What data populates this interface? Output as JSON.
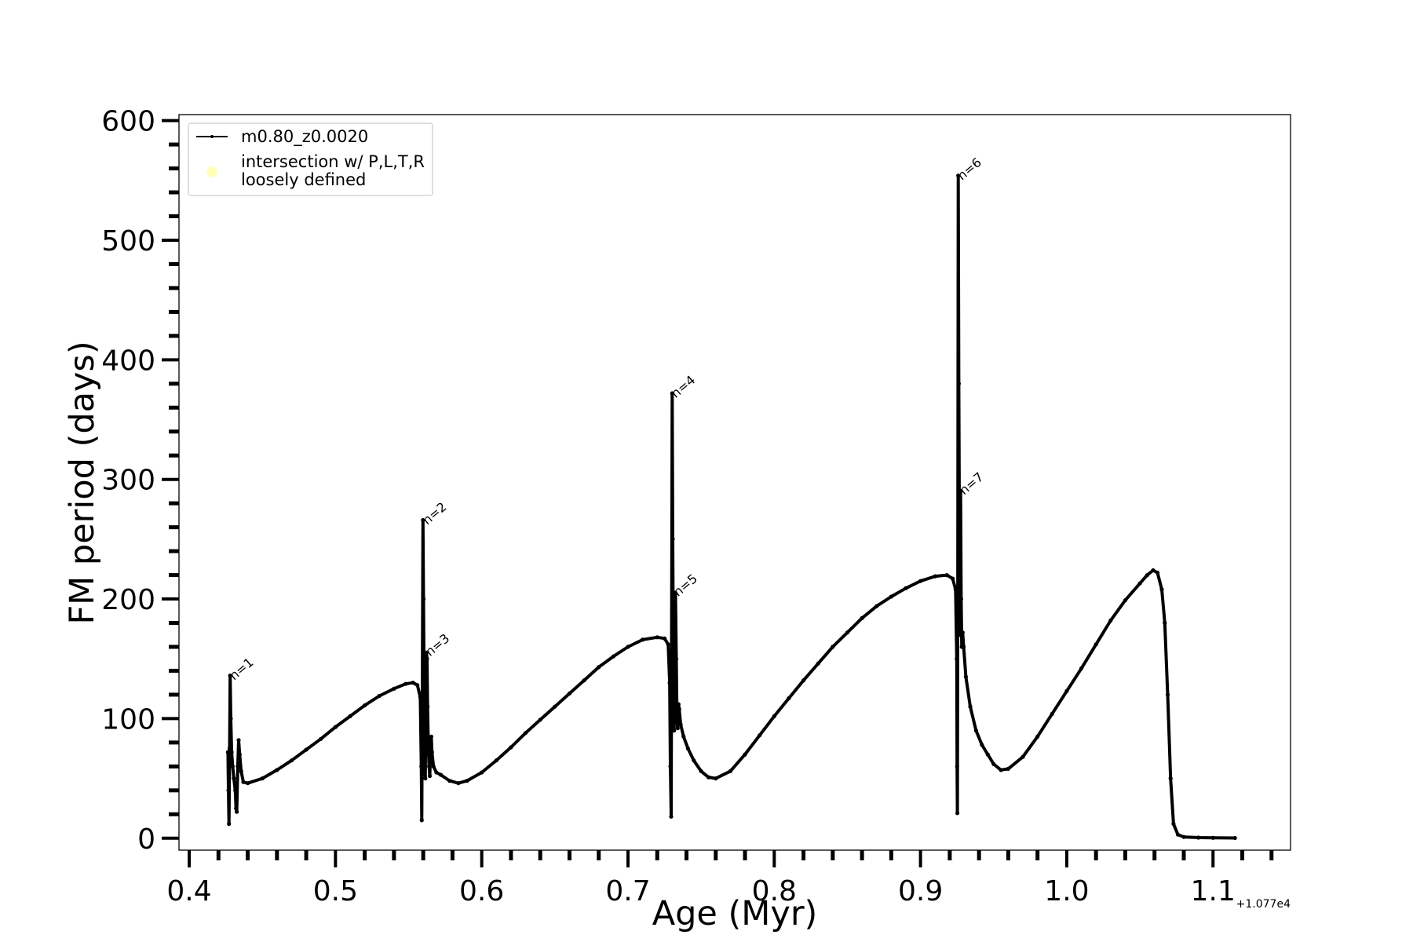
{
  "chart_data": {
    "type": "line",
    "title": "",
    "xlabel": "Age (Myr)",
    "ylabel": "FM period (days)",
    "x_offset_label": "+1.077e4",
    "xlim": [
      0.393,
      1.153
    ],
    "ylim": [
      -10,
      605
    ],
    "x_ticks": [
      0.4,
      0.5,
      0.6,
      0.7,
      0.8,
      0.9,
      1.0,
      1.1
    ],
    "x_tick_labels": [
      "0.4",
      "0.5",
      "0.6",
      "0.7",
      "0.8",
      "0.9",
      "1.0",
      "1.1"
    ],
    "y_ticks": [
      0,
      100,
      200,
      300,
      400,
      500,
      600
    ],
    "y_tick_labels": [
      "0",
      "100",
      "200",
      "300",
      "400",
      "500",
      "600"
    ],
    "grid": false,
    "legend": {
      "placement": "top-left",
      "entries": [
        {
          "label": "m0.80_z0.0020",
          "marker": "line",
          "color": "#000000"
        },
        {
          "label_line1": "intersection w/ P,L,T,R",
          "label_line2": "loosely defined",
          "marker": "circle",
          "color": "#ffffaa"
        }
      ]
    },
    "series": [
      {
        "name": "m0.80_z0.0020",
        "color": "#000000",
        "points": [
          [
            0.4265,
            72
          ],
          [
            0.4268,
            40
          ],
          [
            0.4272,
            12
          ],
          [
            0.4276,
            75
          ],
          [
            0.428,
            136
          ],
          [
            0.4284,
            100
          ],
          [
            0.429,
            72
          ],
          [
            0.4297,
            60
          ],
          [
            0.4305,
            50
          ],
          [
            0.4315,
            40
          ],
          [
            0.432,
            25
          ],
          [
            0.4325,
            22
          ],
          [
            0.4332,
            60
          ],
          [
            0.4338,
            82
          ],
          [
            0.4345,
            70
          ],
          [
            0.4355,
            56
          ],
          [
            0.437,
            47
          ],
          [
            0.44,
            46
          ],
          [
            0.45,
            50
          ],
          [
            0.46,
            57
          ],
          [
            0.47,
            65
          ],
          [
            0.48,
            74
          ],
          [
            0.49,
            83
          ],
          [
            0.5,
            93
          ],
          [
            0.51,
            102
          ],
          [
            0.52,
            111
          ],
          [
            0.53,
            119
          ],
          [
            0.54,
            125
          ],
          [
            0.548,
            129
          ],
          [
            0.553,
            130
          ],
          [
            0.556,
            128
          ],
          [
            0.558,
            118
          ],
          [
            0.5587,
            60
          ],
          [
            0.559,
            15
          ],
          [
            0.5594,
            120
          ],
          [
            0.5598,
            266
          ],
          [
            0.5602,
            200
          ],
          [
            0.5606,
            120
          ],
          [
            0.561,
            60
          ],
          [
            0.5614,
            50
          ],
          [
            0.5618,
            120
          ],
          [
            0.5622,
            155
          ],
          [
            0.5626,
            150
          ],
          [
            0.563,
            110
          ],
          [
            0.5635,
            75
          ],
          [
            0.564,
            60
          ],
          [
            0.5645,
            52
          ],
          [
            0.565,
            75
          ],
          [
            0.5655,
            85
          ],
          [
            0.566,
            72
          ],
          [
            0.567,
            60
          ],
          [
            0.569,
            55
          ],
          [
            0.572,
            53
          ],
          [
            0.578,
            48
          ],
          [
            0.584,
            46
          ],
          [
            0.59,
            48
          ],
          [
            0.6,
            55
          ],
          [
            0.61,
            65
          ],
          [
            0.62,
            76
          ],
          [
            0.63,
            88
          ],
          [
            0.64,
            99
          ],
          [
            0.65,
            110
          ],
          [
            0.66,
            121
          ],
          [
            0.67,
            132
          ],
          [
            0.68,
            143
          ],
          [
            0.69,
            152
          ],
          [
            0.7,
            160
          ],
          [
            0.71,
            166
          ],
          [
            0.72,
            168
          ],
          [
            0.725,
            167
          ],
          [
            0.7275,
            162
          ],
          [
            0.7285,
            130
          ],
          [
            0.729,
            60
          ],
          [
            0.7295,
            18
          ],
          [
            0.7298,
            150
          ],
          [
            0.7302,
            372
          ],
          [
            0.7306,
            250
          ],
          [
            0.731,
            160
          ],
          [
            0.7315,
            90
          ],
          [
            0.732,
            120
          ],
          [
            0.7325,
            205
          ],
          [
            0.733,
            150
          ],
          [
            0.7335,
            100
          ],
          [
            0.734,
            92
          ],
          [
            0.7345,
            112
          ],
          [
            0.735,
            108
          ],
          [
            0.736,
            95
          ],
          [
            0.738,
            85
          ],
          [
            0.741,
            75
          ],
          [
            0.745,
            65
          ],
          [
            0.75,
            56
          ],
          [
            0.755,
            51
          ],
          [
            0.76,
            50
          ],
          [
            0.77,
            56
          ],
          [
            0.78,
            70
          ],
          [
            0.79,
            86
          ],
          [
            0.8,
            102
          ],
          [
            0.81,
            117
          ],
          [
            0.82,
            132
          ],
          [
            0.83,
            146
          ],
          [
            0.84,
            160
          ],
          [
            0.85,
            172
          ],
          [
            0.86,
            184
          ],
          [
            0.87,
            194
          ],
          [
            0.88,
            202
          ],
          [
            0.89,
            209
          ],
          [
            0.9,
            215
          ],
          [
            0.91,
            219
          ],
          [
            0.918,
            220
          ],
          [
            0.922,
            217
          ],
          [
            0.924,
            208
          ],
          [
            0.9248,
            150
          ],
          [
            0.925,
            60
          ],
          [
            0.9252,
            21
          ],
          [
            0.9255,
            200
          ],
          [
            0.9258,
            554
          ],
          [
            0.9262,
            380
          ],
          [
            0.9266,
            250
          ],
          [
            0.927,
            170
          ],
          [
            0.9274,
            290
          ],
          [
            0.9278,
            200
          ],
          [
            0.9282,
            160
          ],
          [
            0.9288,
            172
          ],
          [
            0.9295,
            160
          ],
          [
            0.931,
            135
          ],
          [
            0.934,
            110
          ],
          [
            0.938,
            90
          ],
          [
            0.942,
            78
          ],
          [
            0.946,
            70
          ],
          [
            0.95,
            62
          ],
          [
            0.955,
            57
          ],
          [
            0.96,
            58
          ],
          [
            0.97,
            68
          ],
          [
            0.98,
            85
          ],
          [
            0.99,
            104
          ],
          [
            1.0,
            123
          ],
          [
            1.01,
            142
          ],
          [
            1.02,
            162
          ],
          [
            1.03,
            182
          ],
          [
            1.04,
            199
          ],
          [
            1.05,
            213
          ],
          [
            1.055,
            220
          ],
          [
            1.059,
            224
          ],
          [
            1.062,
            222
          ],
          [
            1.065,
            208
          ],
          [
            1.067,
            180
          ],
          [
            1.069,
            120
          ],
          [
            1.071,
            50
          ],
          [
            1.073,
            12
          ],
          [
            1.076,
            3
          ],
          [
            1.08,
            1
          ],
          [
            1.09,
            0.5
          ],
          [
            1.1,
            0.3
          ],
          [
            1.115,
            0.2
          ]
        ]
      }
    ],
    "annotations": [
      {
        "text": "n=1",
        "x": 0.4285,
        "y": 133
      },
      {
        "text": "n=2",
        "x": 0.5605,
        "y": 263
      },
      {
        "text": "n=3",
        "x": 0.5625,
        "y": 153
      },
      {
        "text": "n=4",
        "x": 0.7305,
        "y": 369
      },
      {
        "text": "n=5",
        "x": 0.732,
        "y": 203
      },
      {
        "text": "n=6",
        "x": 0.9262,
        "y": 551
      },
      {
        "text": "n=7",
        "x": 0.9276,
        "y": 288
      }
    ]
  }
}
